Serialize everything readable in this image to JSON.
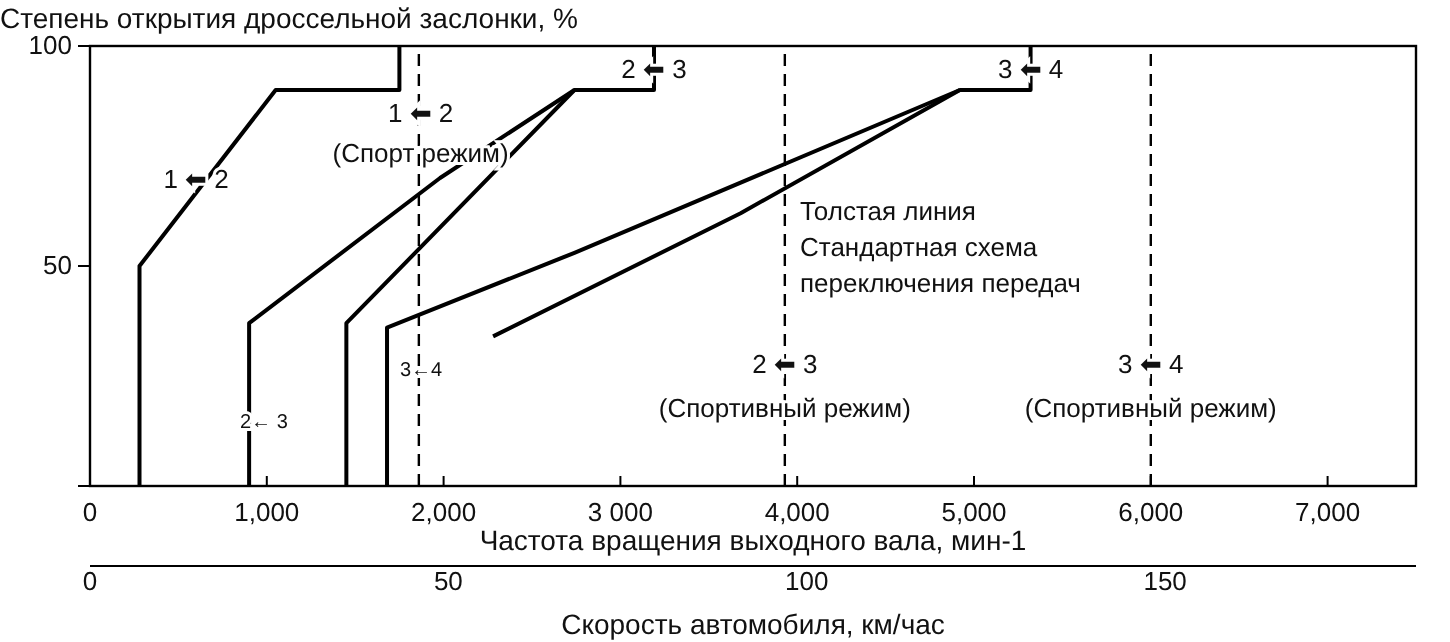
{
  "chart_data": {
    "type": "line",
    "ylabel": "Степень открытия дроссельной заслонки, %",
    "xlabel": "Частота вращения выходного вала, мин-1",
    "x2label": "Скорость автомобиля, км/час",
    "xlim": [
      0,
      7500
    ],
    "xticks": [
      0,
      {
        "value": 1000,
        "label": "1,000"
      },
      {
        "value": 2000,
        "label": "2,000"
      },
      {
        "value": 3000,
        "label": "3 000"
      },
      {
        "value": 4000,
        "label": "4,000"
      },
      {
        "value": 5000,
        "label": "5,000"
      },
      {
        "value": 6000,
        "label": "6,000"
      },
      {
        "value": 7000,
        "label": "7,000"
      }
    ],
    "x2lim": [
      0,
      185
    ],
    "x2ticks": [
      0,
      50,
      100,
      150
    ],
    "ylim": [
      0,
      100
    ],
    "yticks": [
      {
        "value": 0,
        "label": null
      },
      50,
      100
    ],
    "grid": false,
    "marker": "none",
    "line_style": "solid",
    "series": [
      {
        "color": "#000000",
        "x": [
          280,
          280,
          1050,
          1750,
          1750
        ],
        "values": [
          0,
          50,
          90,
          90,
          100
        ]
      },
      {
        "color": "#000000",
        "x": [
          900,
          900,
          1980,
          2740
        ],
        "values": [
          0,
          37,
          70,
          90
        ]
      },
      {
        "color": "#000000",
        "x": [
          1450,
          1450,
          2740,
          3190,
          3190
        ],
        "values": [
          0,
          37,
          90,
          90,
          100
        ]
      },
      {
        "color": "#000000",
        "x": [
          2280,
          3680,
          4920
        ],
        "values": [
          34,
          62,
          90
        ]
      },
      {
        "color": "#000000",
        "x": [
          1680,
          1680,
          2740,
          4920,
          5320,
          5320
        ],
        "values": [
          0,
          36,
          53,
          90,
          90,
          100
        ]
      }
    ],
    "ref_lines": [
      {
        "axis": "x",
        "value": 1860,
        "line_style": "dashed",
        "color": "#000000"
      },
      {
        "axis": "x",
        "value": 3930,
        "line_style": "dashed",
        "color": "#000000"
      },
      {
        "axis": "x",
        "value": 6000,
        "line_style": "dashed",
        "color": "#000000"
      }
    ],
    "annotations": [
      {
        "text": "1 ⬅ 2",
        "x": 600,
        "y": 70
      },
      {
        "text": "1 ⬅ 2",
        "x": 1870,
        "y": 85
      },
      {
        "text": "(Спорт режим)",
        "x": 1870,
        "y": 76
      },
      {
        "text": "2 ⬅ 3",
        "x": 3190,
        "y": 95
      },
      {
        "text": "3 ⬅ 4",
        "x": 5320,
        "y": 95
      },
      "Толстая линия",
      "Стандартная схема",
      "переключения передач",
      {
        "text": "2 ⬅ 3",
        "x": 3930,
        "y": 28
      },
      {
        "text": "(Спортивный режим)",
        "x": 3930,
        "y": 18
      },
      {
        "text": "3 ⬅ 4",
        "x": 6000,
        "y": 28
      },
      {
        "text": "(Спортивный режим)",
        "x": 6000,
        "y": 18
      },
      "2← 3",
      "3←4"
    ]
  }
}
